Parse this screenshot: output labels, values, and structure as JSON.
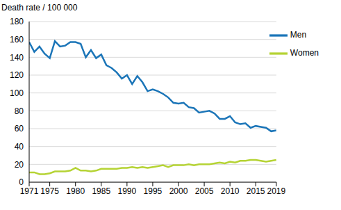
{
  "chart_data": {
    "type": "line",
    "y_label": "Death rate / 100 000",
    "x": [
      1971,
      1972,
      1973,
      1974,
      1975,
      1976,
      1977,
      1978,
      1979,
      1980,
      1981,
      1982,
      1983,
      1984,
      1985,
      1986,
      1987,
      1988,
      1989,
      1990,
      1991,
      1992,
      1993,
      1994,
      1995,
      1996,
      1997,
      1998,
      1999,
      2000,
      2001,
      2002,
      2003,
      2004,
      2005,
      2006,
      2007,
      2008,
      2009,
      2010,
      2011,
      2012,
      2013,
      2014,
      2015,
      2016,
      2017,
      2018,
      2019
    ],
    "series": [
      {
        "name": "Men",
        "color": "#1b75b8",
        "values": [
          157,
          146,
          152,
          144,
          139,
          158,
          152,
          153,
          157,
          157,
          155,
          140,
          148,
          139,
          143,
          131,
          128,
          123,
          116,
          120,
          110,
          119,
          112,
          102,
          104,
          102,
          99,
          95,
          89,
          88,
          89,
          84,
          83,
          78,
          79,
          80,
          77,
          71,
          71,
          74,
          67,
          65,
          66,
          61,
          63,
          62,
          61,
          57,
          58
        ]
      },
      {
        "name": "Women",
        "color": "#b5d334",
        "values": [
          11,
          11,
          9,
          9,
          10,
          12,
          12,
          12,
          13,
          16,
          13,
          13,
          12,
          13,
          15,
          15,
          15,
          15,
          16,
          16,
          17,
          16,
          17,
          16,
          17,
          18,
          19,
          17,
          19,
          19,
          19,
          20,
          19,
          20,
          20,
          20,
          21,
          22,
          21,
          23,
          22,
          24,
          24,
          25,
          25,
          24,
          23,
          24,
          25
        ]
      }
    ],
    "xlim": [
      1971,
      2019
    ],
    "xticks": [
      1971,
      1975,
      1980,
      1985,
      1990,
      1995,
      2000,
      2005,
      2010,
      2015,
      2019
    ],
    "ylim": [
      0,
      180
    ],
    "yticks": [
      0,
      20,
      40,
      60,
      80,
      100,
      120,
      140,
      160,
      180
    ],
    "grid": true,
    "legend": "upper right"
  }
}
